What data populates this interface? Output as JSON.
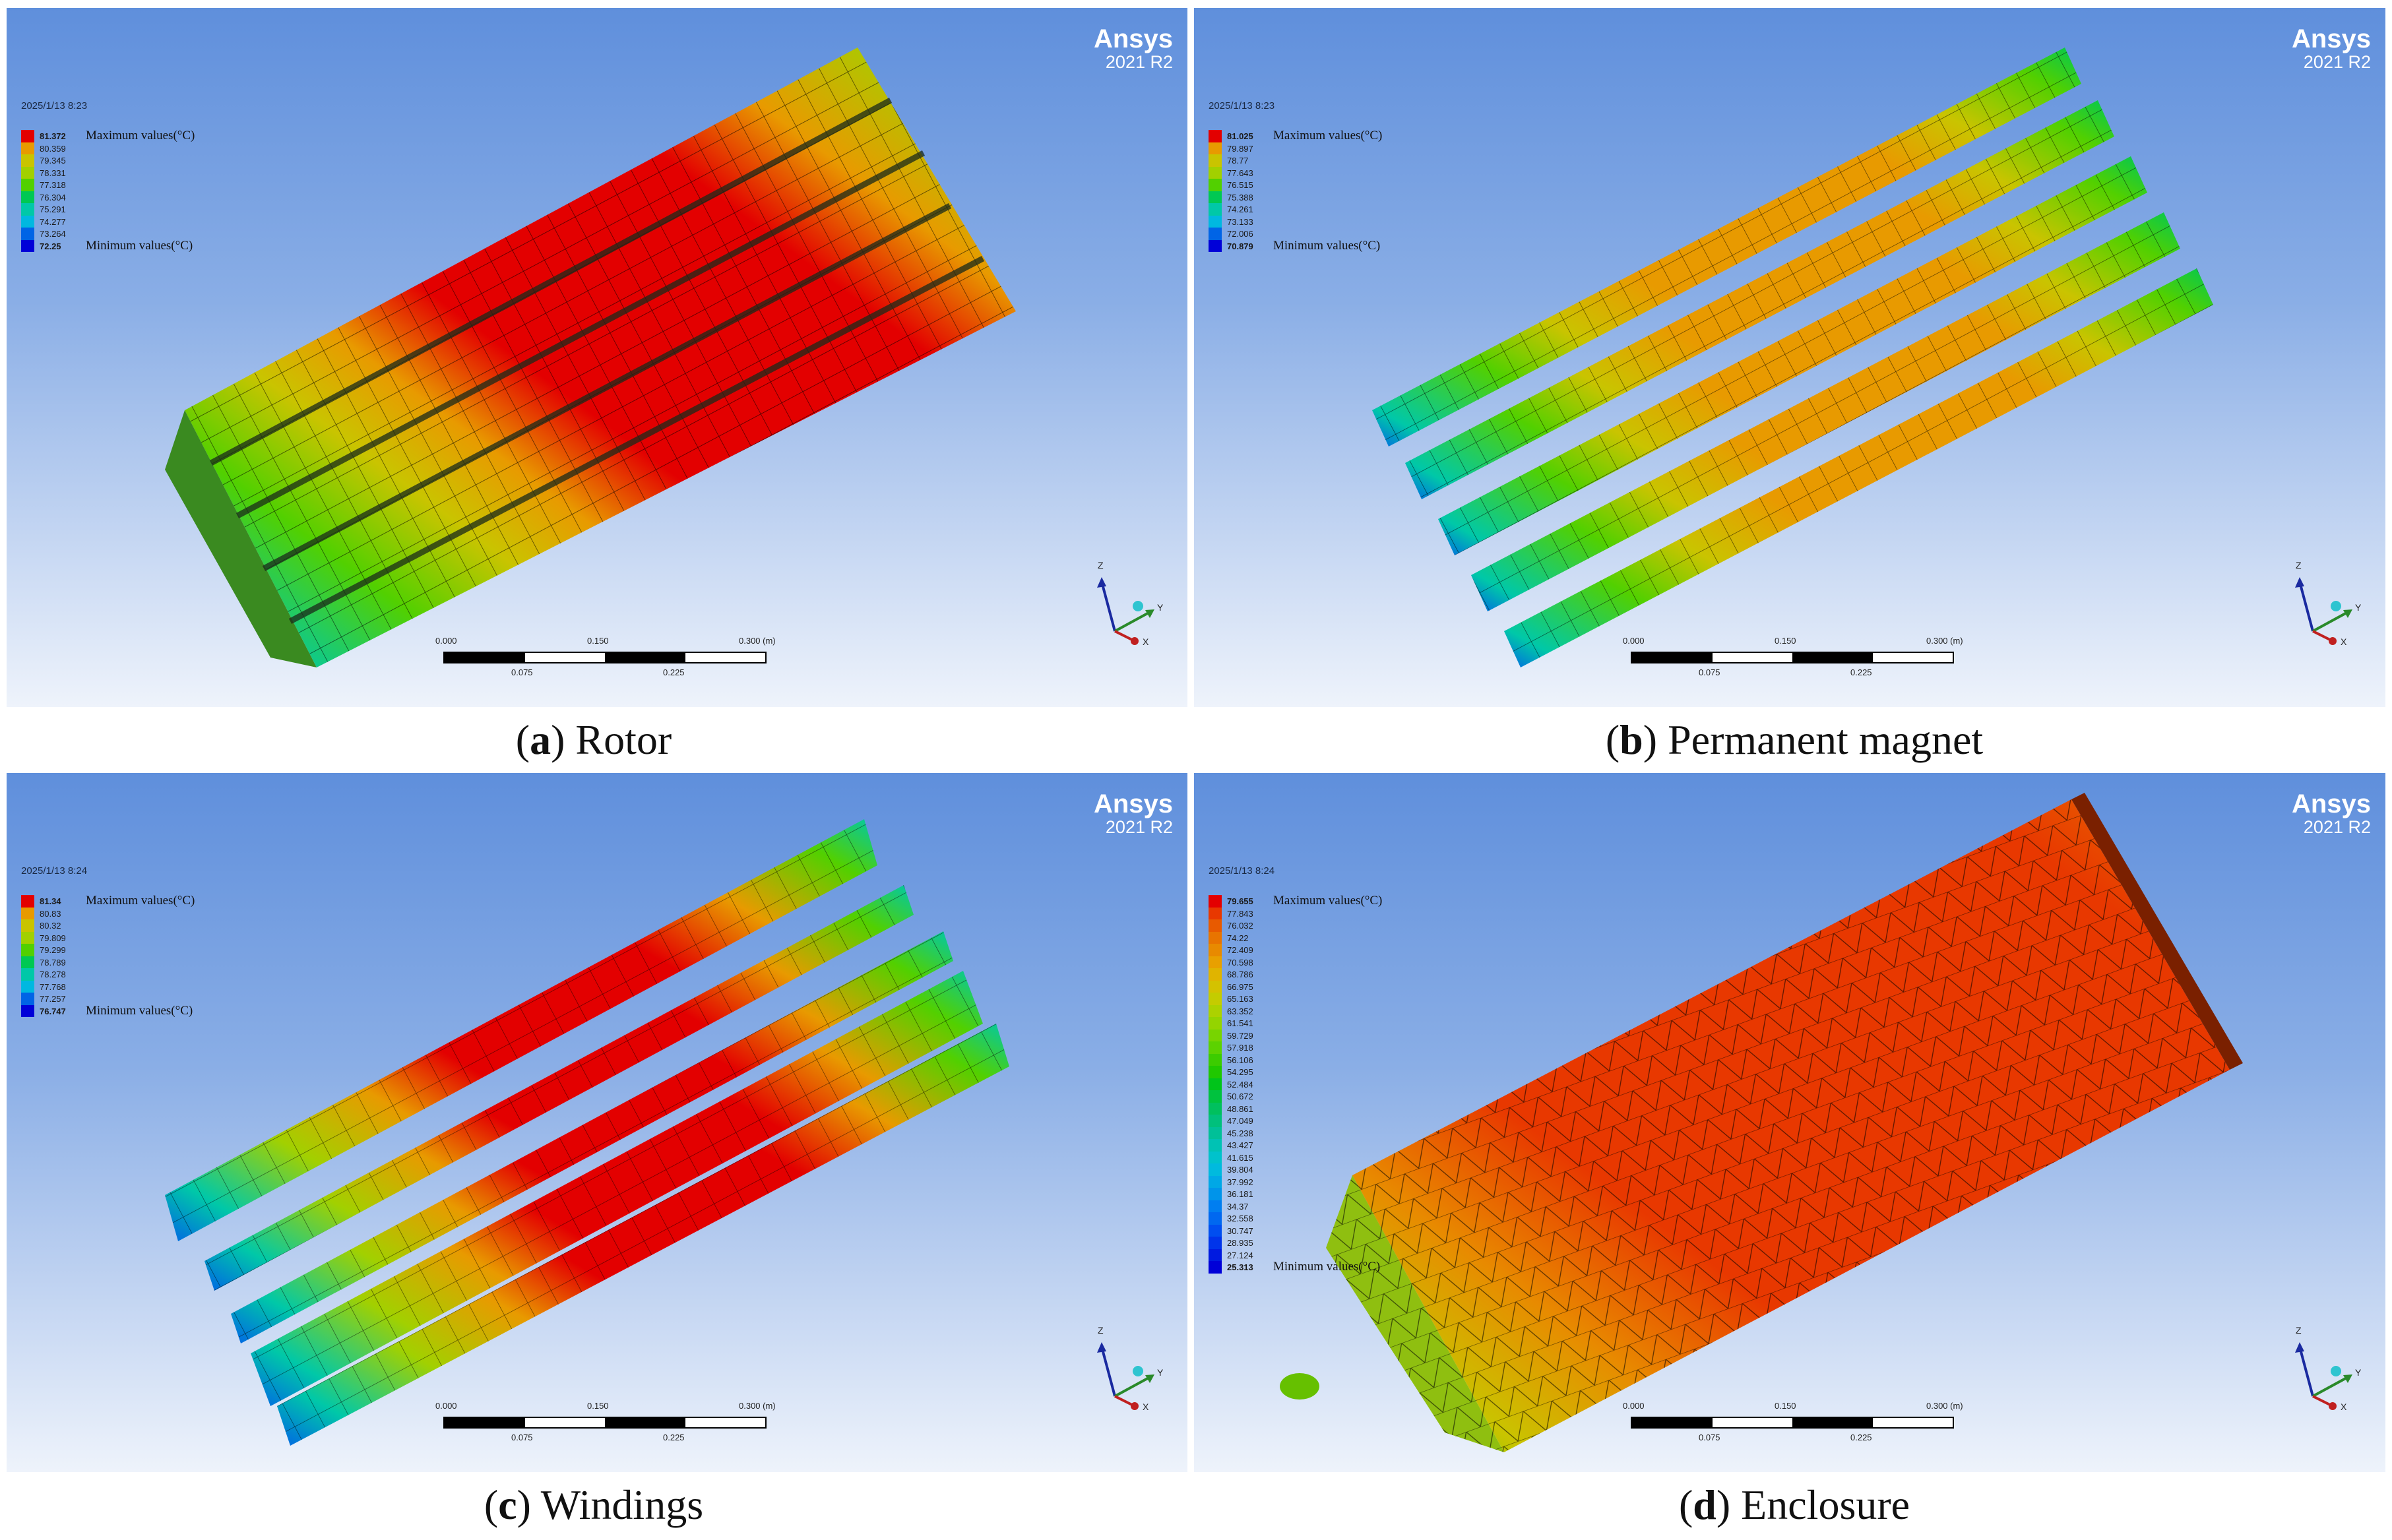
{
  "panels": [
    {
      "id": "a",
      "brand": "Ansys",
      "version": "2021 R2",
      "timestamp": "2025/1/13 8:23",
      "legend": {
        "max_label": "Maximum values(°C)",
        "min_label": "Minimum values(°C)",
        "values": [
          "81.372",
          "80.359",
          "79.345",
          "78.331",
          "77.318",
          "76.304",
          "75.291",
          "74.277",
          "73.264",
          "72.25"
        ],
        "colors": [
          "#e30000",
          "#e89a00",
          "#c9c400",
          "#a2d000",
          "#52d000",
          "#00c853",
          "#00c8a8",
          "#00b8e0",
          "#0064e6",
          "#0000d8"
        ]
      },
      "scale": {
        "top": [
          "0.000",
          "0.150",
          "0.300 (m)"
        ],
        "bottom": [
          "0.075",
          "0.225"
        ]
      },
      "caption_letter": "a",
      "caption_text": " Rotor"
    },
    {
      "id": "b",
      "brand": "Ansys",
      "version": "2021 R2",
      "timestamp": "2025/1/13 8:23",
      "legend": {
        "max_label": "Maximum values(°C)",
        "min_label": "Minimum values(°C)",
        "values": [
          "81.025",
          "79.897",
          "78.77",
          "77.643",
          "76.515",
          "75.388",
          "74.261",
          "73.133",
          "72.006",
          "70.879"
        ],
        "colors": [
          "#e30000",
          "#e89a00",
          "#c9c400",
          "#a2d000",
          "#52d000",
          "#00c853",
          "#00c8a8",
          "#00b8e0",
          "#0064e6",
          "#0000d8"
        ]
      },
      "scale": {
        "top": [
          "0.000",
          "0.150",
          "0.300 (m)"
        ],
        "bottom": [
          "0.075",
          "0.225"
        ]
      },
      "caption_letter": "b",
      "caption_text": " Permanent magnet"
    },
    {
      "id": "c",
      "brand": "Ansys",
      "version": "2021 R2",
      "timestamp": "2025/1/13 8:24",
      "legend": {
        "max_label": "Maximum values(°C)",
        "min_label": "Minimum values(°C)",
        "values": [
          "81.34",
          "80.83",
          "80.32",
          "79.809",
          "79.299",
          "78.789",
          "78.278",
          "77.768",
          "77.257",
          "76.747"
        ],
        "colors": [
          "#e30000",
          "#e89a00",
          "#c9c400",
          "#a2d000",
          "#52d000",
          "#00c853",
          "#00c8a8",
          "#00b8e0",
          "#0064e6",
          "#0000d8"
        ]
      },
      "scale": {
        "top": [
          "0.000",
          "0.150",
          "0.300 (m)"
        ],
        "bottom": [
          "0.075",
          "0.225"
        ]
      },
      "caption_letter": "c",
      "caption_text": " Windings"
    },
    {
      "id": "d",
      "brand": "Ansys",
      "version": "2021 R2",
      "timestamp": "2025/1/13 8:24",
      "legend": {
        "max_label": "Maximum values(°C)",
        "min_label": "Minimum values(°C)",
        "values": [
          "79.655",
          "77.843",
          "76.032",
          "74.22",
          "72.409",
          "70.598",
          "68.786",
          "66.975",
          "65.163",
          "63.352",
          "61.541",
          "59.729",
          "57.918",
          "56.106",
          "54.295",
          "52.484",
          "50.672",
          "48.861",
          "47.049",
          "45.238",
          "43.427",
          "41.615",
          "39.804",
          "37.992",
          "36.181",
          "34.37",
          "32.558",
          "30.747",
          "28.935",
          "27.124",
          "25.313"
        ],
        "colors": [
          "#e30000",
          "#e83800",
          "#e85a00",
          "#e87400",
          "#e88a00",
          "#e8a000",
          "#e0b400",
          "#d4c200",
          "#c4cc00",
          "#acd200",
          "#94d400",
          "#78d400",
          "#5cd200",
          "#3ccc00",
          "#20c800",
          "#00c41a",
          "#00c23e",
          "#00c05e",
          "#00c07c",
          "#00c098",
          "#00c2b4",
          "#00c2cc",
          "#00bade",
          "#00a8e6",
          "#0094ea",
          "#007ef0",
          "#0068f0",
          "#004ef0",
          "#0034ea",
          "#001ae0",
          "#0000d8"
        ]
      },
      "scale": {
        "top": [
          "0.000",
          "0.150",
          "0.300 (m)"
        ],
        "bottom": [
          "0.075",
          "0.225"
        ]
      },
      "caption_letter": "d",
      "caption_text": " Enclosure"
    }
  ],
  "axis_labels": {
    "z": "Z",
    "y": "Y",
    "x": "X"
  }
}
